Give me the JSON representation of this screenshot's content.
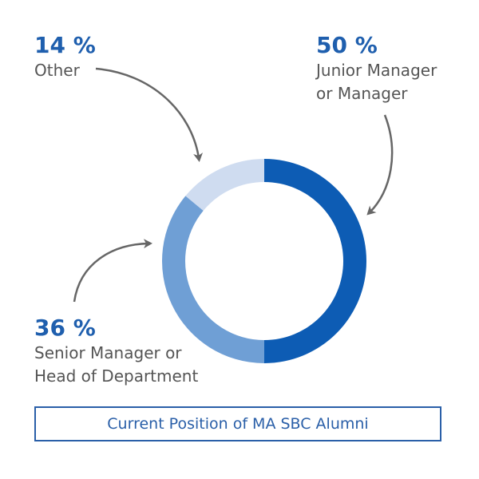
{
  "chart_data": {
    "type": "pie",
    "donut": true,
    "title": "Current Position of MA SBC Alumni",
    "categories": [
      "Junior Manager or Manager",
      "Senior Manager or Head of Department",
      "Other"
    ],
    "values": [
      50,
      36,
      14
    ],
    "colors": [
      "#0d5cb4",
      "#6f9fd5",
      "#cfdcf0"
    ],
    "labels": [
      {
        "pct": "50 %",
        "lines": [
          "Junior Manager",
          "or Manager"
        ]
      },
      {
        "pct": "36 %",
        "lines": [
          "Senior Manager or",
          "Head of Department"
        ]
      },
      {
        "pct": "14 %",
        "lines": [
          "Other"
        ]
      }
    ],
    "arrow_color": "#666666"
  }
}
